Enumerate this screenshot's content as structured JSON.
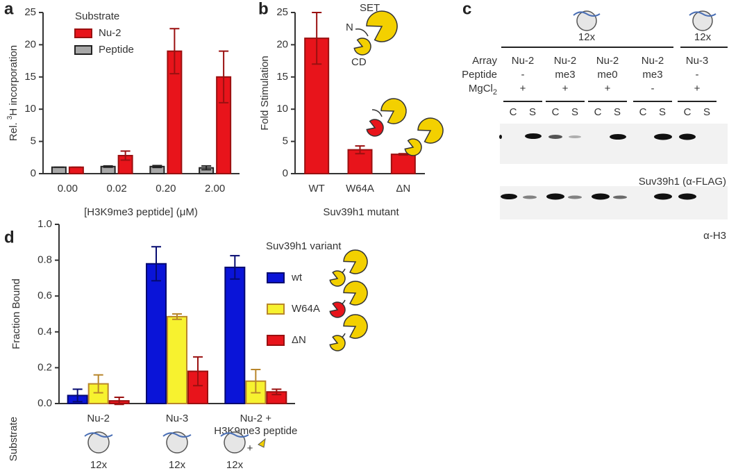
{
  "panel_labels": [
    "a",
    "b",
    "c",
    "d"
  ],
  "chart_data": [
    {
      "type": "bar",
      "legend_title": "Substrate",
      "legend": "upper left",
      "y_label": {
        "pre": "Rel. ",
        "sup": "3",
        "post": "H incorporation"
      },
      "x_label": "[H3K9me3 peptide] (μM)",
      "categories": [
        "0.00",
        "0.02",
        "0.20",
        "2.00"
      ],
      "series": [
        {
          "name": "Peptide",
          "color": "#a8a8a8",
          "edge": "#222222",
          "values": [
            1,
            1.1,
            1.1,
            0.9
          ],
          "errors": [
            0,
            0.1,
            0.15,
            0.3
          ]
        },
        {
          "name": "Nu-2",
          "color": "#e8141b",
          "edge": "#9a1010",
          "values": [
            1,
            2.8,
            19,
            15
          ],
          "errors": [
            0,
            0.7,
            3.5,
            4
          ]
        }
      ],
      "legend_order": [
        1,
        0
      ],
      "ylim": [
        0,
        25
      ],
      "yticks": [
        0,
        5,
        10,
        15,
        20,
        25
      ]
    },
    {
      "type": "bar",
      "y_label": "Fold Stimulation",
      "x_label": "Suv39h1 mutant",
      "categories": [
        "WT",
        "W64A",
        "ΔN"
      ],
      "values": [
        21,
        3.7,
        3.0
      ],
      "errors": [
        4,
        0.6,
        0.1
      ],
      "color": "#e8141b",
      "edge": "#9a1010",
      "annotations": [
        "SET",
        "N",
        "CD"
      ],
      "ylim": [
        0,
        25
      ],
      "yticks": [
        0,
        5,
        10,
        15,
        20,
        25
      ]
    },
    {
      "type": "bar",
      "legend_title": "Suv39h1 variant",
      "legend": "right",
      "y_label": "Fraction Bound",
      "substrate_label": "Substrate",
      "categories": [
        "Nu-2",
        "Nu-3",
        "Nu-2 + H3K9me3 peptide"
      ],
      "series": [
        {
          "name": "wt",
          "color": "#0a14d8",
          "edge": "#050a70",
          "values": [
            0.045,
            0.78,
            0.76
          ],
          "errors": [
            0.035,
            0.095,
            0.065
          ]
        },
        {
          "name": "W64A",
          "color": "#f7f22f",
          "edge": "#b8862b",
          "values": [
            0.11,
            0.485,
            0.125
          ],
          "errors": [
            0.05,
            0.015,
            0.065
          ]
        },
        {
          "name": "ΔN",
          "color": "#e8141b",
          "edge": "#9a1010",
          "values": [
            0.015,
            0.18,
            0.065
          ],
          "errors": [
            0.02,
            0.08,
            0.015
          ]
        }
      ],
      "icon_labels": [
        "12x",
        "12x",
        "12x"
      ],
      "icon_plus": "+",
      "ylim": [
        0,
        1
      ],
      "yticks": [
        {
          "value": 0,
          "label": "0.0"
        },
        0.2,
        0.4,
        0.6,
        0.8,
        {
          "value": 1,
          "label": "1.0"
        }
      ]
    }
  ],
  "blot": {
    "top_labels": [
      "12x",
      "12x"
    ],
    "row_labels": [
      "Array",
      "Peptide"
    ],
    "mgcl2": {
      "base": "MgCl",
      "sub": "2"
    },
    "columns": [
      {
        "array": "Nu-2",
        "peptide": "-",
        "mgcl2": "+"
      },
      {
        "array": "Nu-2",
        "peptide": "me3",
        "mgcl2": "+"
      },
      {
        "array": "Nu-2",
        "peptide": "me0",
        "mgcl2": "+"
      },
      {
        "array": "Nu-2",
        "peptide": "me3",
        "mgcl2": "-"
      },
      {
        "array": "Nu-3",
        "peptide": "-",
        "mgcl2": "+"
      }
    ],
    "lane_labels": [
      "C",
      "S",
      "C",
      "S",
      "C",
      "S",
      "C",
      "S",
      "C",
      "S"
    ],
    "blot_labels": [
      "Suv39h1 (α-FLAG)",
      "α-H3"
    ]
  }
}
